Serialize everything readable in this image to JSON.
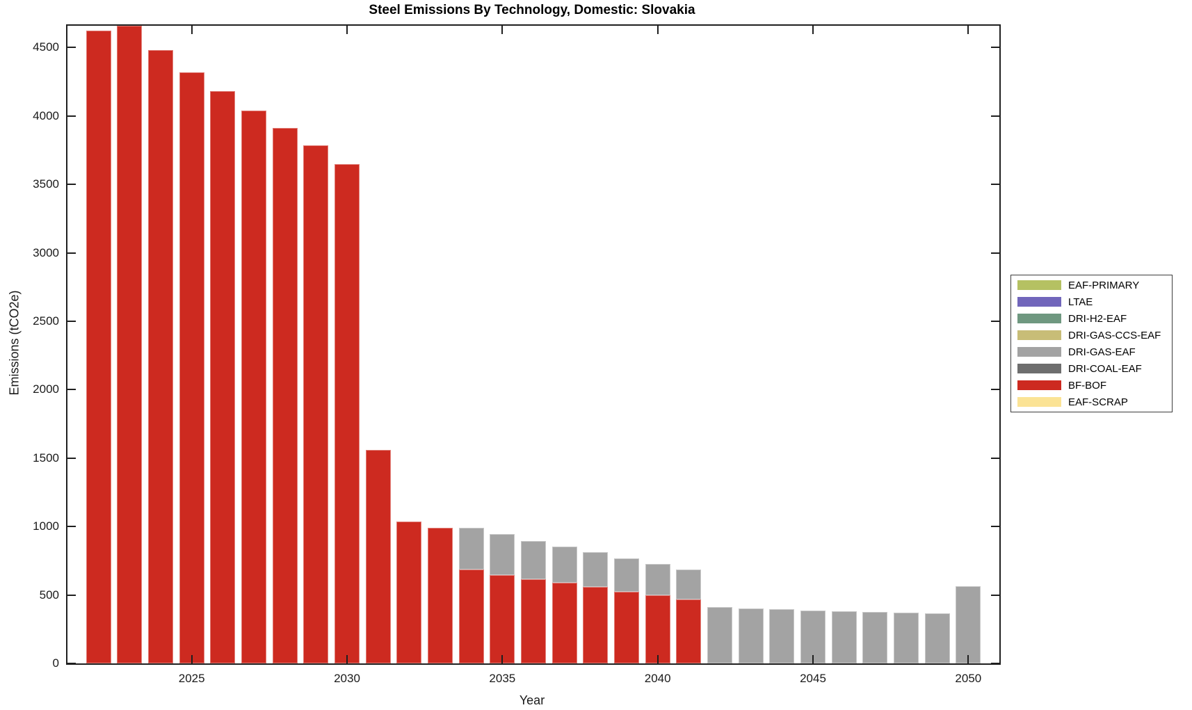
{
  "chart_data": {
    "type": "bar",
    "stacked": true,
    "title": "Steel Emissions By Technology, Domestic: Slovakia",
    "xlabel": "Year",
    "ylabel": "Emissions (tCO2e)",
    "xlim": [
      2021,
      2051
    ],
    "ylim": [
      0,
      4660
    ],
    "grid": false,
    "x_ticks": [
      2025,
      2030,
      2035,
      2040,
      2045,
      2050
    ],
    "y_ticks": [
      0,
      500,
      1000,
      1500,
      2000,
      2500,
      3000,
      3500,
      4000,
      4500
    ],
    "years": [
      2022,
      2023,
      2024,
      2025,
      2026,
      2027,
      2028,
      2029,
      2030,
      2031,
      2032,
      2033,
      2034,
      2035,
      2036,
      2037,
      2038,
      2039,
      2040,
      2041,
      2042,
      2043,
      2044,
      2045,
      2046,
      2047,
      2048,
      2049,
      2050
    ],
    "series": [
      {
        "name": "BF-BOF",
        "color": "#cd2a20",
        "values": [
          4625,
          4660,
          4480,
          4320,
          4180,
          4040,
          3915,
          3785,
          3650,
          1560,
          1035,
          990,
          685,
          645,
          617,
          590,
          557,
          525,
          498,
          467,
          0,
          0,
          0,
          0,
          0,
          0,
          0,
          0,
          0
        ]
      },
      {
        "name": "DRI-GAS-EAF",
        "color": "#a3a3a3",
        "values": [
          0,
          0,
          0,
          0,
          0,
          0,
          0,
          0,
          0,
          0,
          0,
          0,
          305,
          300,
          280,
          263,
          255,
          243,
          230,
          218,
          410,
          402,
          394,
          386,
          379,
          374,
          370,
          367,
          565
        ]
      }
    ],
    "legend_position": "right-outside",
    "legend": [
      {
        "label": "EAF-PRIMARY",
        "color": "#b5c162"
      },
      {
        "label": "LTAE",
        "color": "#7166bb"
      },
      {
        "label": "DRI-H2-EAF",
        "color": "#6f9880"
      },
      {
        "label": "DRI-GAS-CCS-EAF",
        "color": "#c8bd77"
      },
      {
        "label": "DRI-GAS-EAF",
        "color": "#a3a3a3"
      },
      {
        "label": "DRI-COAL-EAF",
        "color": "#6e6e6e"
      },
      {
        "label": "BF-BOF",
        "color": "#cd2a20"
      },
      {
        "label": "EAF-SCRAP",
        "color": "#fbe395"
      }
    ]
  }
}
